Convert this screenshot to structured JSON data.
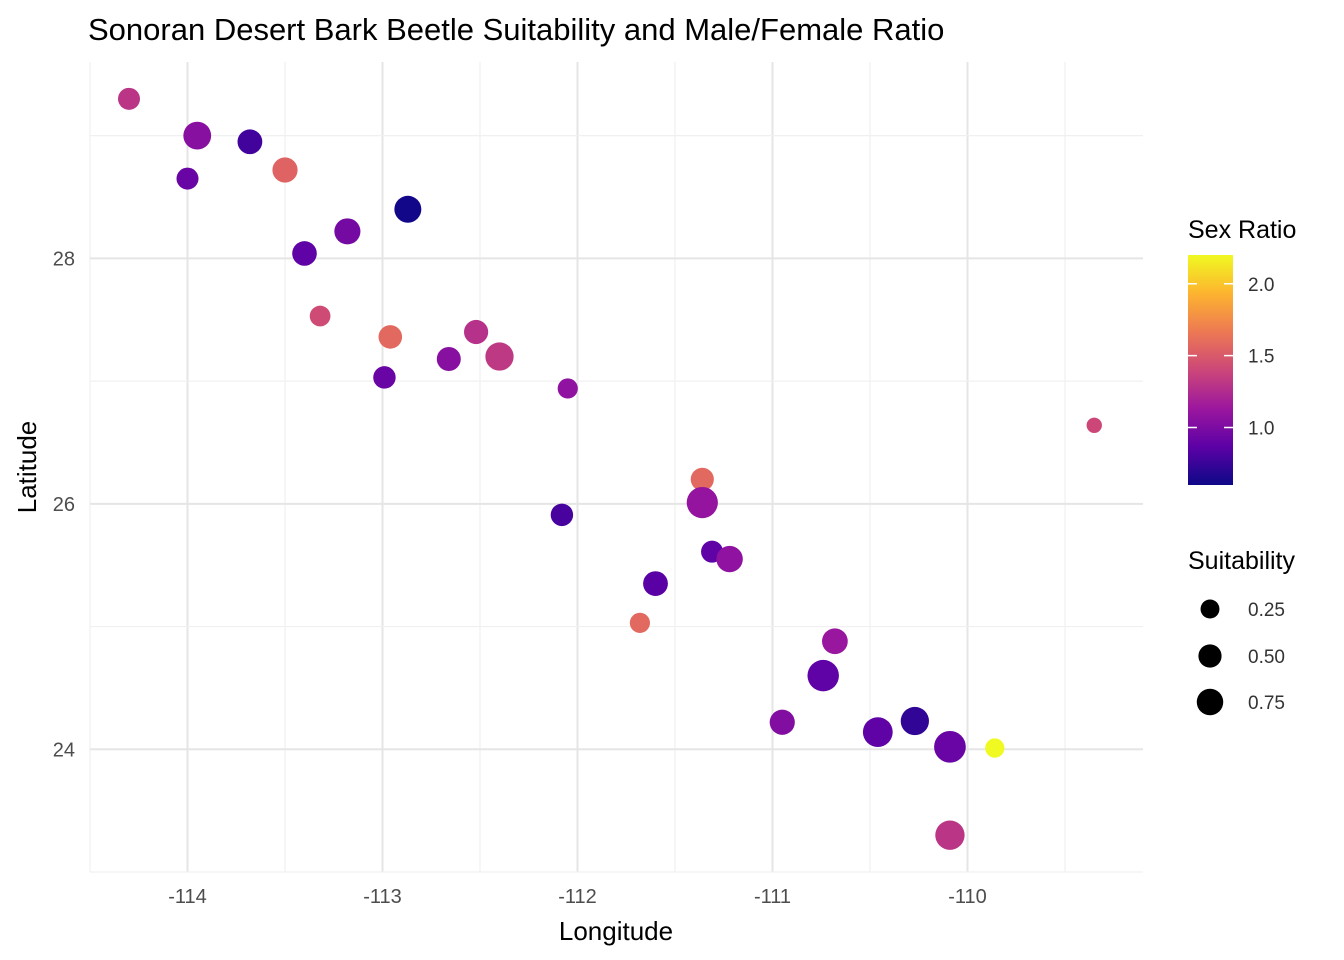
{
  "chart_data": {
    "type": "scatter",
    "title": "Sonoran Desert Bark Beetle Suitability and Male/Female Ratio",
    "xlabel": "Longitude",
    "ylabel": "Latitude",
    "xlim": [
      -114.5,
      -109.1
    ],
    "ylim": [
      23.0,
      29.6
    ],
    "x_ticks": [
      -114,
      -113,
      -112,
      -111,
      -110
    ],
    "y_ticks": [
      24,
      26,
      28
    ],
    "x_tick_labels": [
      "-114",
      "-113",
      "-112",
      "-111",
      "-110"
    ],
    "y_tick_labels": [
      "24",
      "26",
      "28"
    ],
    "grid": true,
    "color_legend": {
      "title": "Sex Ratio",
      "min": 0.6,
      "max": 2.2,
      "ticks": [
        1.0,
        1.5,
        2.0
      ],
      "tick_labels": [
        "1.0",
        "1.5",
        "2.0"
      ],
      "palette": [
        "#0d0887",
        "#5c01a6",
        "#9c179e",
        "#cc4778",
        "#ed7953",
        "#fdb42f",
        "#f0f921"
      ],
      "placement": "right"
    },
    "size_legend": {
      "title": "Suitability",
      "values": [
        0.25,
        0.5,
        0.75
      ],
      "labels": [
        "0.25",
        "0.50",
        "0.75"
      ],
      "placement": "right",
      "color": "#000000"
    },
    "points": [
      {
        "lon": -114.3,
        "lat": 29.3,
        "suitability": 0.25,
        "ratio": 1.3
      },
      {
        "lon": -113.95,
        "lat": 29.0,
        "suitability": 0.55,
        "ratio": 1.05
      },
      {
        "lon": -113.68,
        "lat": 28.95,
        "suitability": 0.38,
        "ratio": 0.78
      },
      {
        "lon": -114.0,
        "lat": 28.65,
        "suitability": 0.25,
        "ratio": 0.92
      },
      {
        "lon": -113.5,
        "lat": 28.72,
        "suitability": 0.4,
        "ratio": 1.55
      },
      {
        "lon": -112.87,
        "lat": 28.4,
        "suitability": 0.5,
        "ratio": 0.62
      },
      {
        "lon": -113.18,
        "lat": 28.22,
        "suitability": 0.45,
        "ratio": 0.97
      },
      {
        "lon": -113.4,
        "lat": 28.04,
        "suitability": 0.37,
        "ratio": 0.88
      },
      {
        "lon": -113.32,
        "lat": 27.53,
        "suitability": 0.2,
        "ratio": 1.42
      },
      {
        "lon": -112.96,
        "lat": 27.36,
        "suitability": 0.32,
        "ratio": 1.58
      },
      {
        "lon": -112.52,
        "lat": 27.4,
        "suitability": 0.35,
        "ratio": 1.28
      },
      {
        "lon": -112.66,
        "lat": 27.18,
        "suitability": 0.34,
        "ratio": 1.05
      },
      {
        "lon": -112.4,
        "lat": 27.2,
        "suitability": 0.58,
        "ratio": 1.32
      },
      {
        "lon": -112.99,
        "lat": 27.03,
        "suitability": 0.27,
        "ratio": 0.92
      },
      {
        "lon": -112.05,
        "lat": 26.94,
        "suitability": 0.18,
        "ratio": 1.08
      },
      {
        "lon": -109.35,
        "lat": 26.64,
        "suitability": 0.05,
        "ratio": 1.4
      },
      {
        "lon": -111.36,
        "lat": 26.2,
        "suitability": 0.3,
        "ratio": 1.58
      },
      {
        "lon": -111.36,
        "lat": 26.01,
        "suitability": 0.78,
        "ratio": 1.1
      },
      {
        "lon": -112.08,
        "lat": 25.91,
        "suitability": 0.27,
        "ratio": 0.8
      },
      {
        "lon": -111.31,
        "lat": 25.61,
        "suitability": 0.25,
        "ratio": 0.88
      },
      {
        "lon": -111.22,
        "lat": 25.55,
        "suitability": 0.47,
        "ratio": 1.08
      },
      {
        "lon": -111.6,
        "lat": 25.35,
        "suitability": 0.38,
        "ratio": 0.86
      },
      {
        "lon": -111.68,
        "lat": 25.03,
        "suitability": 0.18,
        "ratio": 1.58
      },
      {
        "lon": -110.68,
        "lat": 24.88,
        "suitability": 0.43,
        "ratio": 1.12
      },
      {
        "lon": -110.74,
        "lat": 24.6,
        "suitability": 0.8,
        "ratio": 0.88
      },
      {
        "lon": -110.95,
        "lat": 24.22,
        "suitability": 0.4,
        "ratio": 1.02
      },
      {
        "lon": -110.46,
        "lat": 24.14,
        "suitability": 0.68,
        "ratio": 0.88
      },
      {
        "lon": -110.27,
        "lat": 24.23,
        "suitability": 0.58,
        "ratio": 0.72
      },
      {
        "lon": -110.09,
        "lat": 24.02,
        "suitability": 0.82,
        "ratio": 0.92
      },
      {
        "lon": -109.86,
        "lat": 24.01,
        "suitability": 0.15,
        "ratio": 2.2
      },
      {
        "lon": -110.09,
        "lat": 23.3,
        "suitability": 0.65,
        "ratio": 1.3
      }
    ]
  }
}
